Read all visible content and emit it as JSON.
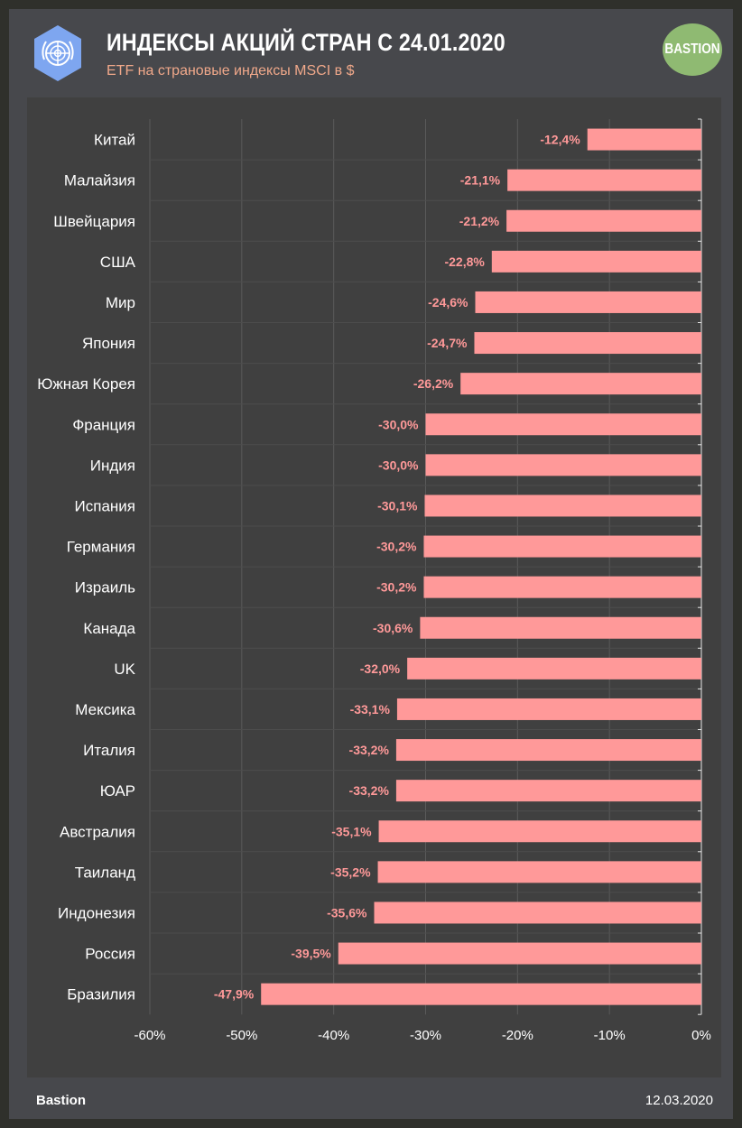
{
  "header": {
    "title": "ИНДЕКСЫ АКЦИЙ СТРАН С 24.01.2020",
    "subtitle": "ETF на страновые индексы MSCI в $",
    "logo_icon": "un-emblem-icon",
    "badge": "BASTION"
  },
  "footer": {
    "source": "Bastion",
    "date": "12.03.2020"
  },
  "colors": {
    "bar": "#ff9999",
    "value_label": "#ff9999",
    "subtitle": "#f0a88a",
    "badge": "#8fba72",
    "logo": "#7ea6f0"
  },
  "chart_data": {
    "type": "bar",
    "orientation": "horizontal",
    "categories": [
      "Китай",
      "Малайзия",
      "Швейцария",
      "США",
      "Мир",
      "Япония",
      "Южная Корея",
      "Франция",
      "Индия",
      "Испания",
      "Германия",
      "Израиль",
      "Канада",
      "UK",
      "Мексика",
      "Италия",
      "ЮАР",
      "Австралия",
      "Таиланд",
      "Индонезия",
      "Россия",
      "Бразилия"
    ],
    "values": [
      -12.4,
      -21.1,
      -21.2,
      -22.8,
      -24.6,
      -24.7,
      -26.2,
      -30.0,
      -30.0,
      -30.1,
      -30.2,
      -30.2,
      -30.6,
      -32.0,
      -33.1,
      -33.2,
      -33.2,
      -35.1,
      -35.2,
      -35.6,
      -39.5,
      -47.9
    ],
    "value_labels": [
      "-12,4%",
      "-21,1%",
      "-21,2%",
      "-22,8%",
      "-24,6%",
      "-24,7%",
      "-26,2%",
      "-30,0%",
      "-30,0%",
      "-30,1%",
      "-30,2%",
      "-30,2%",
      "-30,6%",
      "-32,0%",
      "-33,1%",
      "-33,2%",
      "-33,2%",
      "-35,1%",
      "-35,2%",
      "-35,6%",
      "-39,5%",
      "-47,9%"
    ],
    "xlim": [
      -60,
      0
    ],
    "xticks": [
      -60,
      -50,
      -40,
      -30,
      -20,
      -10,
      0
    ],
    "xtick_labels": [
      "-60%",
      "-50%",
      "-40%",
      "-30%",
      "-20%",
      "-10%",
      "0%"
    ],
    "grid": true,
    "legend": "none"
  }
}
